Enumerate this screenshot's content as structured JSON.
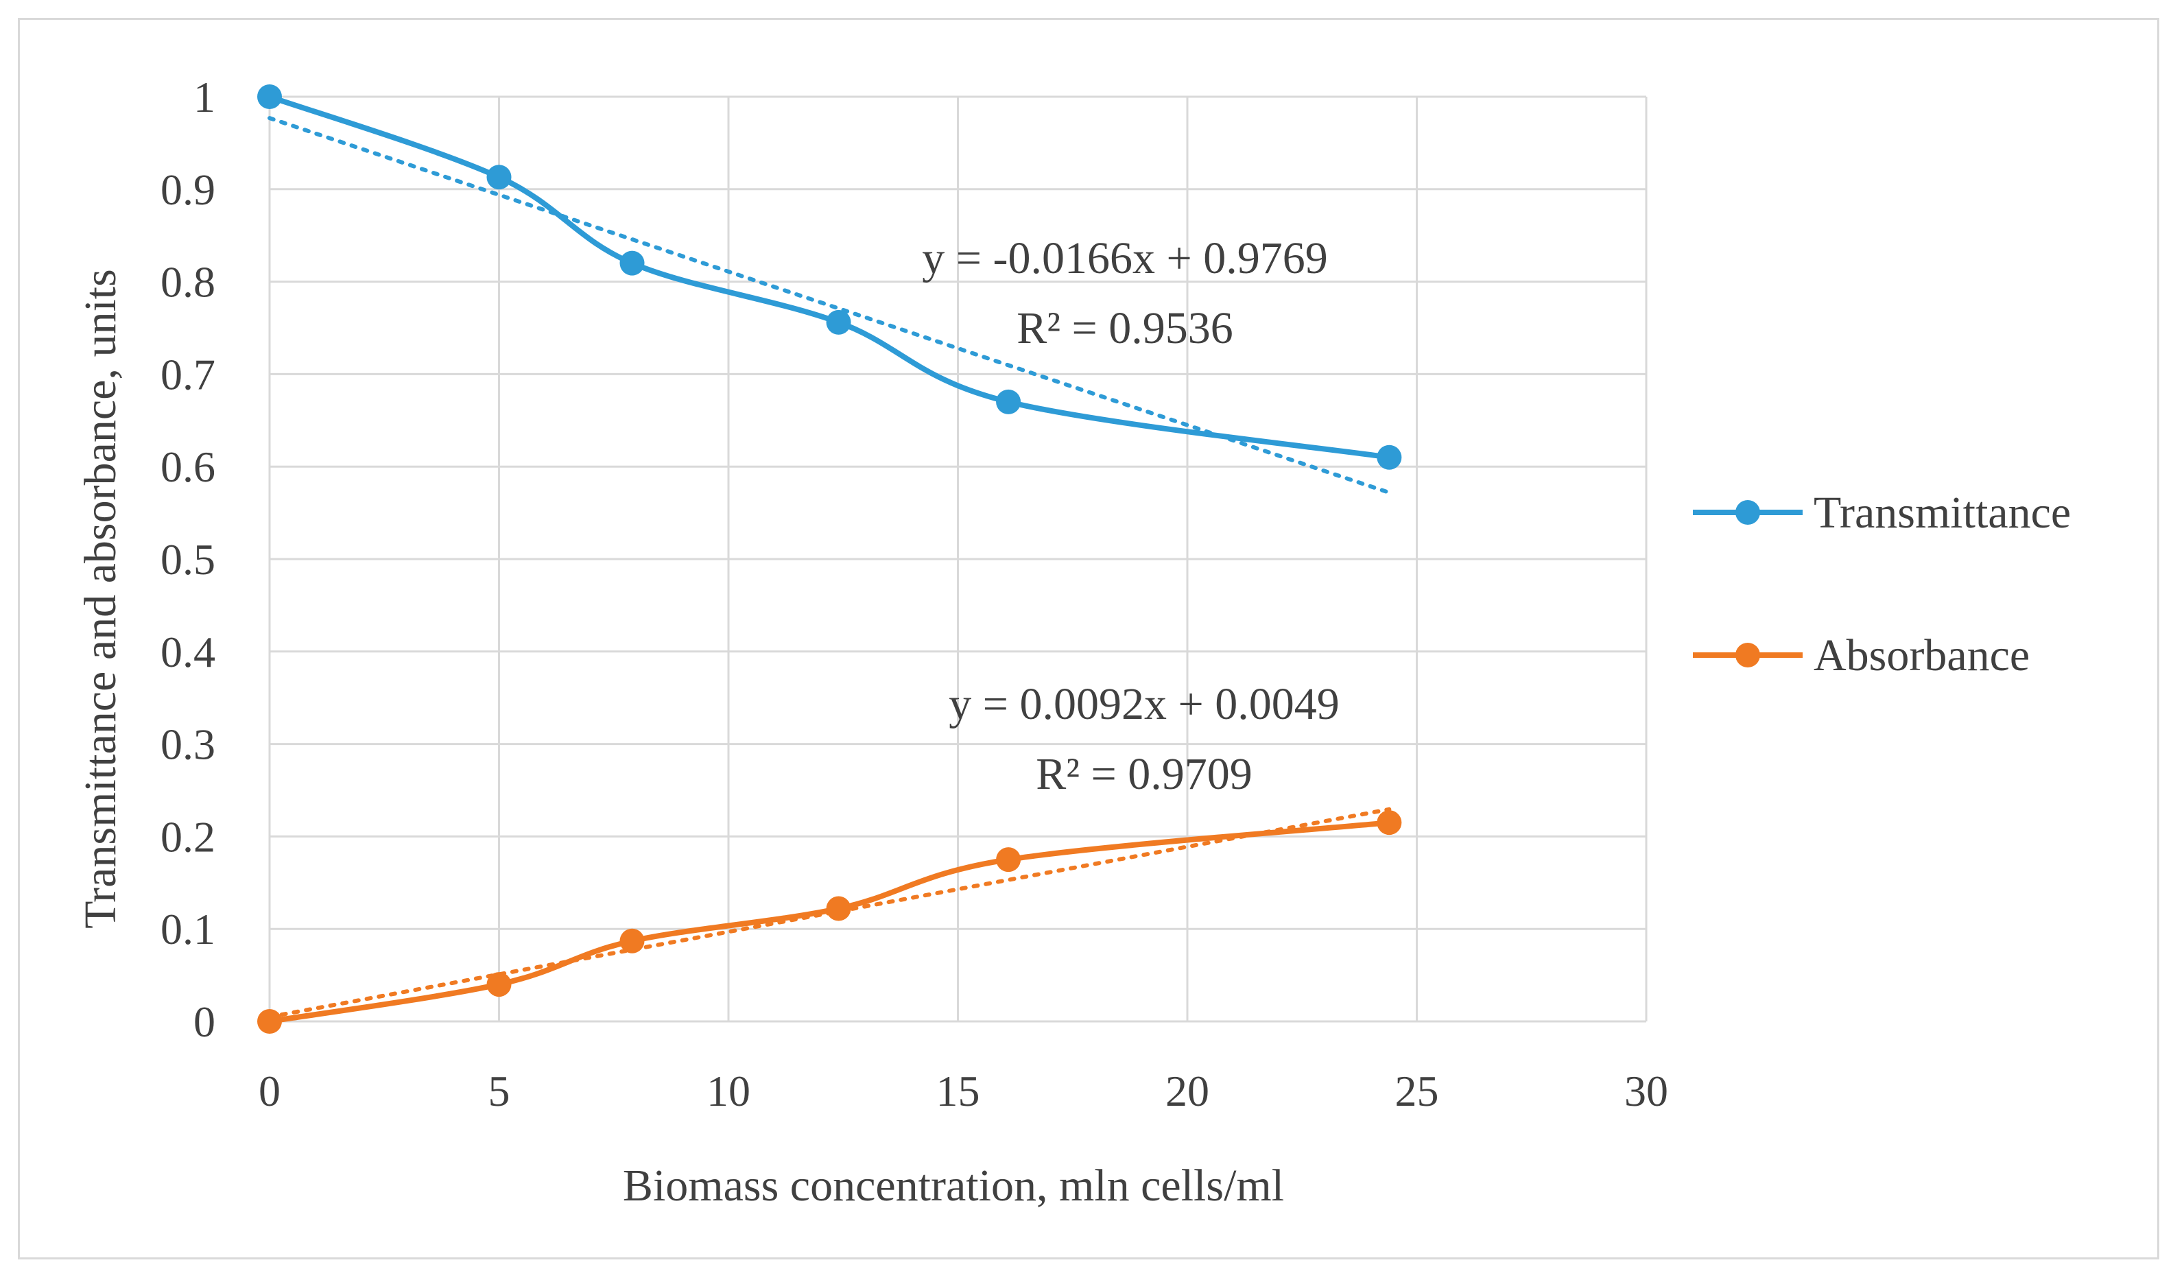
{
  "chart_data": {
    "type": "line",
    "xlabel": "Biomass concentration, mln cells/ml",
    "ylabel": "Transmittance and absorbance, units",
    "xlim": [
      0,
      30
    ],
    "ylim": [
      0,
      1
    ],
    "x_ticks": [
      "0",
      "5",
      "10",
      "15",
      "20",
      "25",
      "30"
    ],
    "y_ticks": [
      "0",
      "0.1",
      "0.2",
      "0.3",
      "0.4",
      "0.5",
      "0.6",
      "0.7",
      "0.8",
      "0.9",
      "1"
    ],
    "grid": true,
    "legend_position": "right",
    "series": [
      {
        "name": "Transmittance",
        "color": "#2e9bd6",
        "x": [
          0,
          5,
          7.9,
          12.4,
          16.1,
          24.4
        ],
        "y": [
          1.0,
          0.913,
          0.82,
          0.756,
          0.67,
          0.61
        ],
        "trendline": {
          "type": "linear",
          "slope": -0.0166,
          "intercept": 0.9769,
          "equation": "y = -0.0166x + 0.9769",
          "r2": "R² = 0.9536"
        }
      },
      {
        "name": "Absorbance",
        "color": "#f07a22",
        "x": [
          0,
          5,
          7.9,
          12.4,
          16.1,
          24.4
        ],
        "y": [
          0.0,
          0.04,
          0.087,
          0.122,
          0.175,
          0.215
        ],
        "trendline": {
          "type": "linear",
          "slope": 0.0092,
          "intercept": 0.0049,
          "equation": "y = 0.0092x + 0.0049",
          "r2": "R² = 0.9709"
        }
      }
    ]
  }
}
